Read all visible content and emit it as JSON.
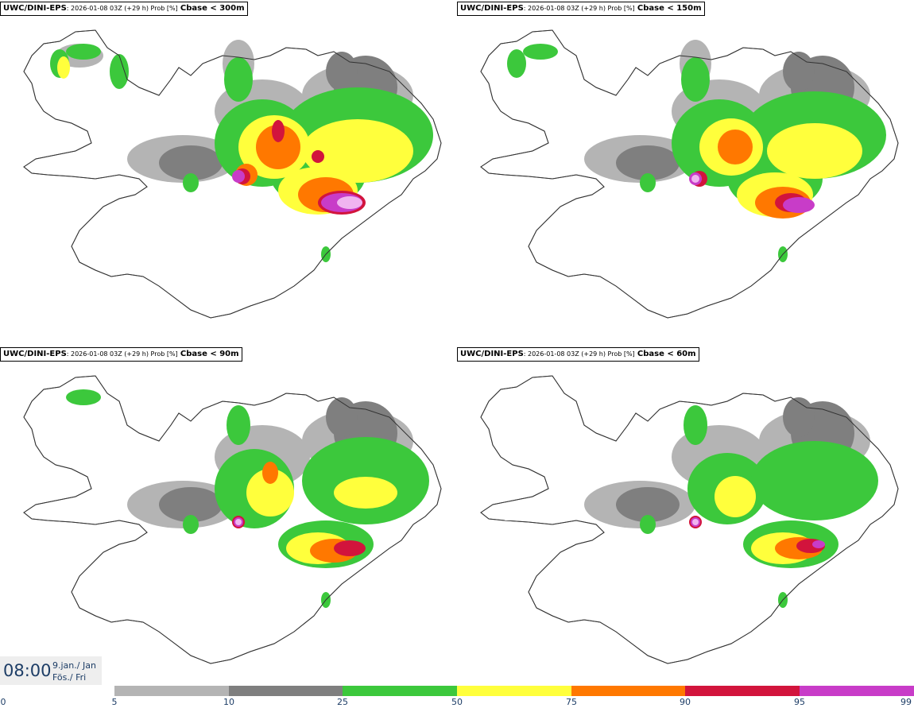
{
  "panels": [
    {
      "model": "UWC/DINI-EPS",
      "meta": ": 2026-01-08 03Z (+29 h) Prob [%]",
      "param": "Cbase < 300m"
    },
    {
      "model": "UWC/DINI-EPS",
      "meta": ": 2026-01-08 03Z (+29 h) Prob [%]",
      "param": "Cbase < 150m"
    },
    {
      "model": "UWC/DINI-EPS",
      "meta": ": 2026-01-08 03Z (+29 h) Prob [%]",
      "param": "Cbase < 90m"
    },
    {
      "model": "UWC/DINI-EPS",
      "meta": ": 2026-01-08 03Z (+29 h) Prob [%]",
      "param": "Cbase < 60m"
    }
  ],
  "time": {
    "clock": "08:00",
    "date_line1": "9.jan./ Jan",
    "date_line2": "Fös./ Fri"
  },
  "colorbar": {
    "zero_label": "0",
    "ticks": [
      "5",
      "10",
      "25",
      "50",
      "75",
      "90",
      "95",
      "99"
    ],
    "colors": [
      "#b4b4b4",
      "#7f7f7f",
      "#3cc83c",
      "#ffff3c",
      "#ff7800",
      "#d2143c",
      "#c83cc8",
      "#f0b4f0"
    ]
  }
}
